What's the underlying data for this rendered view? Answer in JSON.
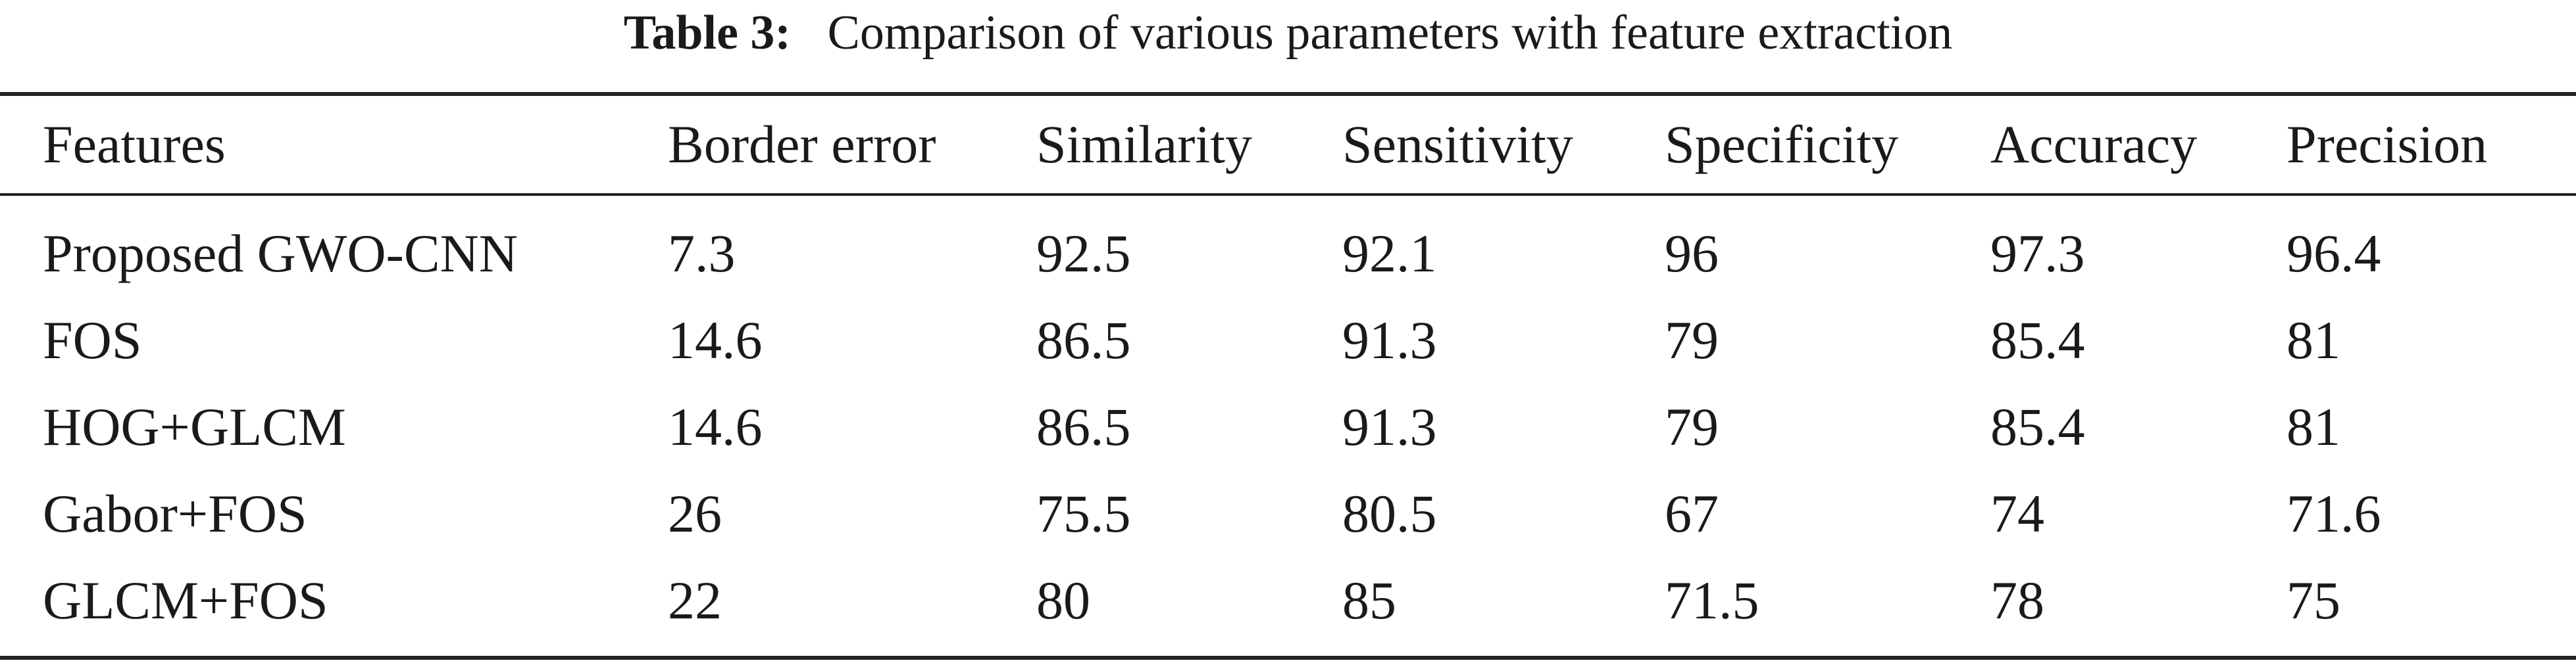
{
  "caption": {
    "label": "Table 3:",
    "text": "Comparison of various parameters with feature extraction"
  },
  "table": {
    "headers": [
      "Features",
      "Border error",
      "Similarity",
      "Sensitivity",
      "Specificity",
      "Accuracy",
      "Precision"
    ],
    "rows": [
      [
        "Proposed GWO-CNN",
        "7.3",
        "92.5",
        "92.1",
        "96",
        "97.3",
        "96.4"
      ],
      [
        "FOS",
        "14.6",
        "86.5",
        "91.3",
        "79",
        "85.4",
        "81"
      ],
      [
        "HOG+GLCM",
        "14.6",
        "86.5",
        "91.3",
        "79",
        "85.4",
        "81"
      ],
      [
        "Gabor+FOS",
        "26",
        "75.5",
        "80.5",
        "67",
        "74",
        "71.6"
      ],
      [
        "GLCM+FOS",
        "22",
        "80",
        "85",
        "71.5",
        "78",
        "75"
      ]
    ],
    "bold_rows": [
      0
    ]
  }
}
